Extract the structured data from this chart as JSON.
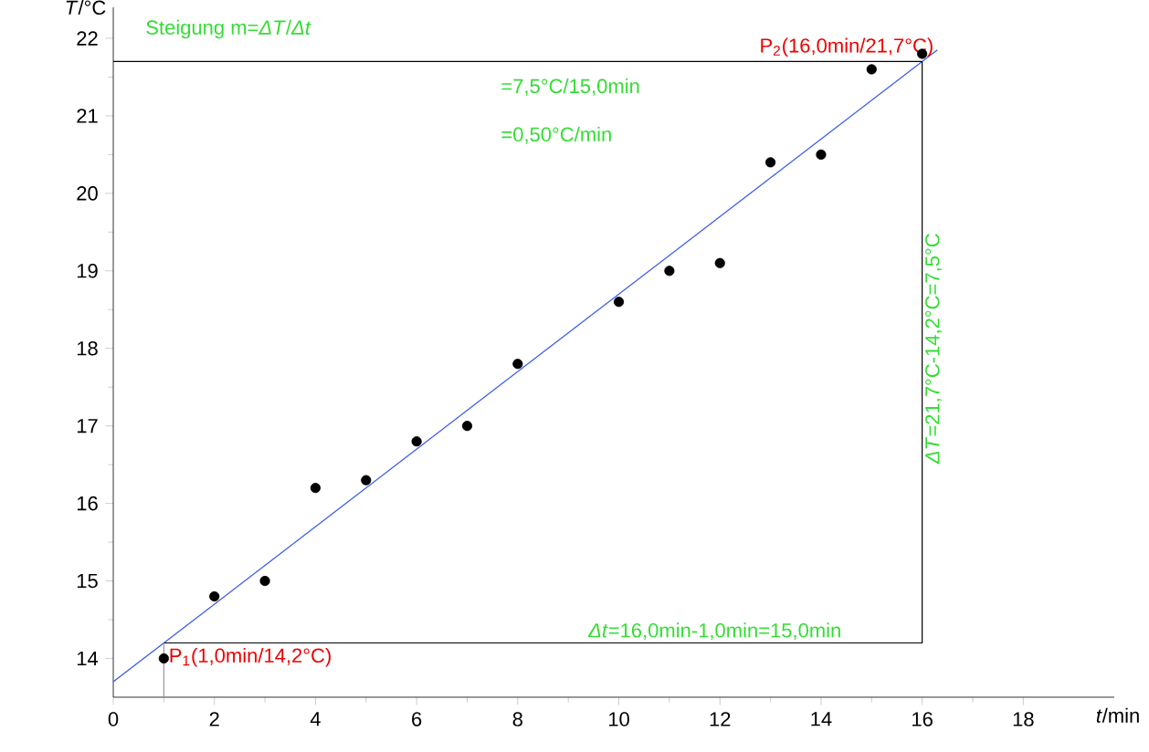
{
  "chart_data": {
    "type": "scatter",
    "xlabel": "*t*/min",
    "ylabel": "*T*/°C",
    "xlim": [
      0,
      19.8
    ],
    "ylim": [
      13.5,
      22.4
    ],
    "xticks": [
      0,
      2,
      4,
      6,
      8,
      10,
      12,
      14,
      16,
      18
    ],
    "yticks": [
      14,
      15,
      16,
      17,
      18,
      19,
      20,
      21,
      22
    ],
    "grid": false,
    "series": [
      {
        "type": "scatter",
        "marker": "circle",
        "color": "#000000",
        "x": [
          1,
          2,
          3,
          4,
          5,
          6,
          7,
          8,
          10,
          11,
          12,
          13,
          14,
          15,
          16
        ],
        "values": [
          14.0,
          14.8,
          15.0,
          16.2,
          16.3,
          16.8,
          17.0,
          17.8,
          18.6,
          19.0,
          19.1,
          20.4,
          20.5,
          21.6,
          21.8
        ]
      },
      {
        "type": "line",
        "marker": "none",
        "color": "#3355ee",
        "x": [
          0,
          16.3
        ],
        "values": [
          13.7,
          21.85
        ]
      },
      {
        "type": "line",
        "marker": "none",
        "color": "#000000",
        "x": [
          0,
          16
        ],
        "values": [
          21.7,
          21.7
        ]
      },
      {
        "type": "line",
        "marker": "none",
        "color": "#000000",
        "x": [
          1,
          16,
          16
        ],
        "values": [
          14.2,
          14.2,
          21.7
        ]
      },
      {
        "type": "line",
        "marker": "none",
        "color": "#999999",
        "x": [
          1,
          1
        ],
        "values": [
          13.5,
          14.2
        ]
      }
    ],
    "annotations": [
      "Steigung m=*ΔT*/*Δt*",
      "=7,5°C/15,0min",
      "=0,50°C/min",
      {
        "text": "P$_{2}$(16,0min/21,7°C)",
        "x": 16,
        "y": 21.7
      },
      {
        "text": "P$_{1}$(1,0min/14,2°C)",
        "x": 1,
        "y": 14.2
      },
      {
        "text": "*ΔT*=21,7°C-14,2°C=7,5°C",
        "x": 16,
        "y": 18
      },
      {
        "text": "*Δt*=16,0min-1,0min=15,0min",
        "x": 11.9,
        "y": 14.2
      }
    ]
  }
}
